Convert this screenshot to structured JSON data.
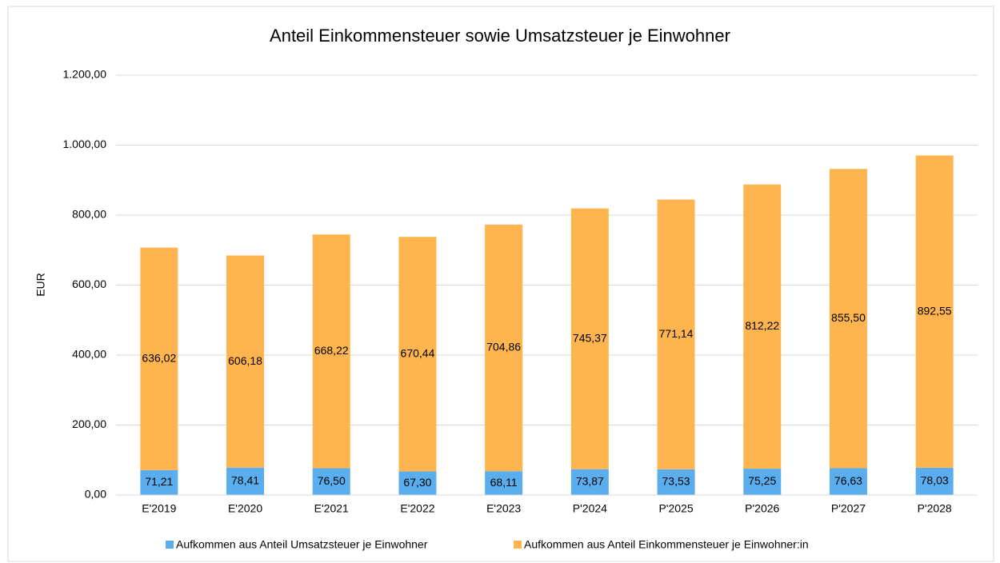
{
  "chart_data": {
    "type": "stacked_bar",
    "title": "Anteil Einkommensteuer sowie Umsatzsteuer je Einwohner",
    "y_label": "EUR",
    "categories": [
      "E'2019",
      "E'2020",
      "E'2021",
      "E'2022",
      "E'2023",
      "P'2024",
      "P'2025",
      "P'2026",
      "P'2027",
      "P'2028"
    ],
    "series": [
      {
        "name": "Aufkommen aus Anteil Umsatzsteuer je Einwohner",
        "color": "#5aaeee",
        "values": [
          71.21,
          78.41,
          76.5,
          67.3,
          68.11,
          73.87,
          73.53,
          75.25,
          76.63,
          78.03
        ],
        "value_labels": [
          "71,21",
          "78,41",
          "76,50",
          "67,30",
          "68,11",
          "73,87",
          "73,53",
          "75,25",
          "76,63",
          "78,03"
        ]
      },
      {
        "name": "Aufkommen aus Anteil Einkommensteuer je Einwohner:in",
        "color": "#ffb54f",
        "values": [
          636.02,
          606.18,
          668.22,
          670.44,
          704.86,
          745.37,
          771.14,
          812.22,
          855.5,
          892.55
        ],
        "value_labels": [
          "636,02",
          "606,18",
          "668,22",
          "670,44",
          "704,86",
          "745,37",
          "771,14",
          "812,22",
          "855,50",
          "892,55"
        ]
      }
    ],
    "ylim": [
      0,
      1200
    ],
    "yticks": [
      {
        "value": 0,
        "label": "0,00"
      },
      {
        "value": 200,
        "label": "200,00"
      },
      {
        "value": 400,
        "label": "400,00"
      },
      {
        "value": 600,
        "label": "600,00"
      },
      {
        "value": 800,
        "label": "800,00"
      },
      {
        "value": 1000,
        "label": "1.000,00"
      },
      {
        "value": 1200,
        "label": "1.200,00"
      }
    ],
    "grid": true,
    "legend": "bottom"
  }
}
